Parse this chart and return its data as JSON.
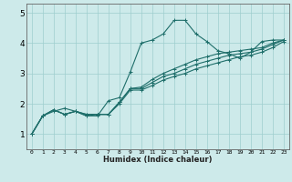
{
  "xlabel": "Humidex (Indice chaleur)",
  "xlim": [
    -0.5,
    23.5
  ],
  "ylim": [
    0.5,
    5.3
  ],
  "yticks": [
    1,
    2,
    3,
    4,
    5
  ],
  "xticks": [
    0,
    1,
    2,
    3,
    4,
    5,
    6,
    7,
    8,
    9,
    10,
    11,
    12,
    13,
    14,
    15,
    16,
    17,
    18,
    19,
    20,
    21,
    22,
    23
  ],
  "bg_color": "#cdeaea",
  "grid_color": "#9ecece",
  "line_color": "#1e6e6a",
  "lines": [
    [
      0,
      1.0,
      1,
      1.6,
      2,
      1.75,
      3,
      1.85,
      4,
      1.75,
      5,
      1.6,
      6,
      1.6,
      7,
      2.1,
      8,
      2.2,
      9,
      3.05,
      10,
      4.0,
      11,
      4.1,
      12,
      4.3,
      13,
      4.75,
      14,
      4.75,
      15,
      4.3,
      16,
      4.05,
      17,
      3.75,
      18,
      3.65,
      19,
      3.5,
      20,
      3.7,
      21,
      4.05,
      22,
      4.1,
      23,
      4.1
    ],
    [
      0,
      1.0,
      1,
      1.6,
      2,
      1.8,
      3,
      1.65,
      4,
      1.75,
      5,
      1.6,
      6,
      1.65,
      7,
      1.65,
      8,
      2.05,
      9,
      2.5,
      10,
      2.55,
      11,
      2.8,
      12,
      3.0,
      13,
      3.15,
      14,
      3.3,
      15,
      3.45,
      16,
      3.55,
      17,
      3.65,
      18,
      3.7,
      19,
      3.75,
      20,
      3.8,
      21,
      3.85,
      22,
      4.0,
      23,
      4.1
    ],
    [
      0,
      1.0,
      1,
      1.6,
      2,
      1.8,
      3,
      1.65,
      4,
      1.75,
      5,
      1.65,
      6,
      1.65,
      7,
      1.65,
      8,
      2.05,
      9,
      2.5,
      10,
      2.5,
      11,
      2.7,
      12,
      2.9,
      13,
      3.0,
      14,
      3.15,
      15,
      3.3,
      16,
      3.4,
      17,
      3.5,
      18,
      3.6,
      19,
      3.65,
      20,
      3.7,
      21,
      3.8,
      22,
      3.95,
      23,
      4.1
    ],
    [
      0,
      1.0,
      1,
      1.6,
      2,
      1.8,
      3,
      1.65,
      4,
      1.75,
      5,
      1.65,
      6,
      1.65,
      7,
      1.65,
      8,
      2.0,
      9,
      2.45,
      10,
      2.45,
      11,
      2.6,
      12,
      2.78,
      13,
      2.9,
      14,
      3.0,
      15,
      3.15,
      16,
      3.25,
      17,
      3.35,
      18,
      3.45,
      19,
      3.55,
      20,
      3.6,
      21,
      3.7,
      22,
      3.85,
      23,
      4.05
    ]
  ]
}
